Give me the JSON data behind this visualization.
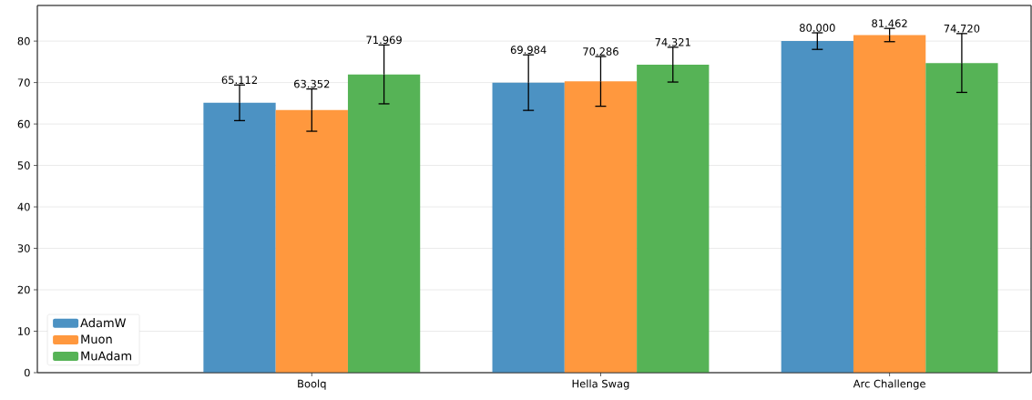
{
  "chart_data": {
    "type": "bar",
    "categories": [
      "Boolq",
      "Hella Swag",
      "Arc Challenge"
    ],
    "series": [
      {
        "name": "AdamW",
        "color": "#4c92c3",
        "values": [
          65.112,
          69.984,
          80.0
        ],
        "errors": [
          4.3,
          6.7,
          2.0
        ],
        "value_labels": [
          "65.112",
          "69.984",
          "80.000"
        ]
      },
      {
        "name": "Muon",
        "color": "#ff983e",
        "values": [
          63.352,
          70.286,
          81.462
        ],
        "errors": [
          5.1,
          6.0,
          1.6
        ],
        "value_labels": [
          "63.352",
          "70.286",
          "81.462"
        ]
      },
      {
        "name": "MuAdam",
        "color": "#56b356",
        "values": [
          71.969,
          74.321,
          74.72
        ],
        "errors": [
          7.1,
          4.2,
          7.1
        ],
        "value_labels": [
          "71.969",
          "74.321",
          "74.720"
        ]
      }
    ],
    "ylim": [
      0,
      88.6
    ],
    "yticks": [
      0,
      10,
      20,
      30,
      40,
      50,
      60,
      70,
      80
    ],
    "grid": "y",
    "legend": "bottom left"
  }
}
